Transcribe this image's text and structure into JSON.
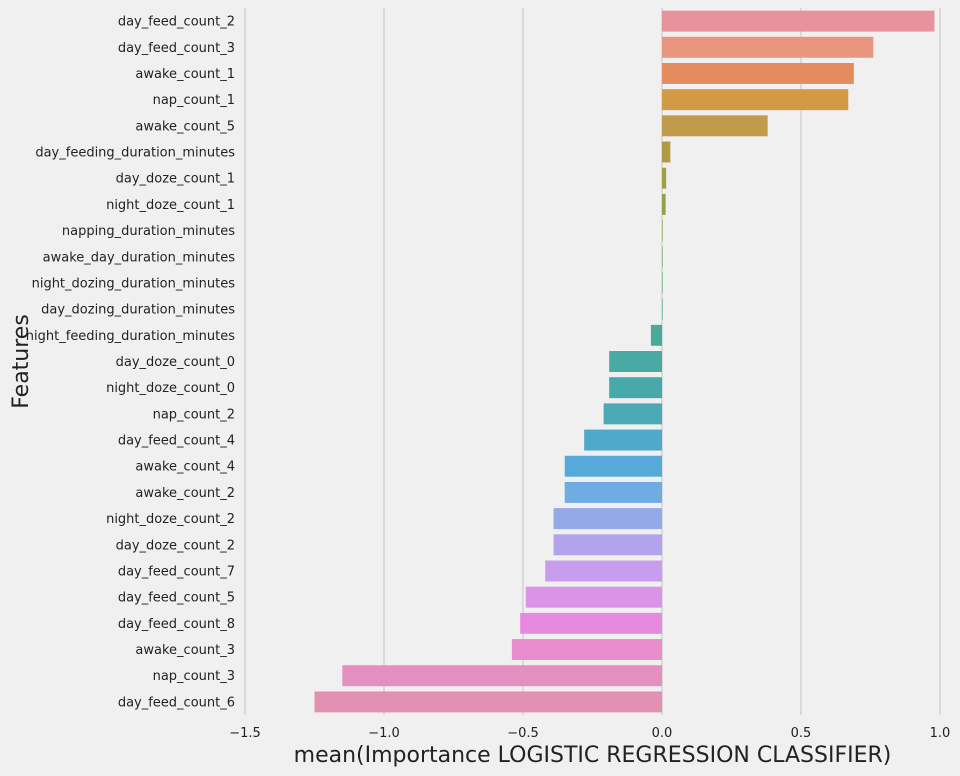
{
  "chart_data": {
    "type": "bar",
    "orientation": "horizontal",
    "xlabel": "mean(Importance LOGISTIC REGRESSION CLASSIFIER)",
    "ylabel": "Features",
    "xlim": [
      -1.5,
      1.0
    ],
    "xticks": [
      -1.5,
      -1.0,
      -0.5,
      0.0,
      0.5,
      1.0
    ],
    "xtick_labels": [
      "−1.5",
      "−1.0",
      "−0.5",
      "0.0",
      "0.5",
      "1.0"
    ],
    "grid": "vertical",
    "categories": [
      "day_feed_count_2",
      "day_feed_count_3",
      "awake_count_1",
      "nap_count_1",
      "awake_count_5",
      "day_feeding_duration_minutes",
      "day_doze_count_1",
      "night_doze_count_1",
      "napping_duration_minutes",
      "awake_day_duration_minutes",
      "night_dozing_duration_minutes",
      "day_dozing_duration_minutes",
      "night_feeding_duration_minutes",
      "day_doze_count_0",
      "night_doze_count_0",
      "nap_count_2",
      "day_feed_count_4",
      "awake_count_4",
      "awake_count_2",
      "night_doze_count_2",
      "day_doze_count_2",
      "day_feed_count_7",
      "day_feed_count_5",
      "day_feed_count_8",
      "awake_count_3",
      "nap_count_3",
      "day_feed_count_6"
    ],
    "values": [
      0.98,
      0.76,
      0.69,
      0.67,
      0.38,
      0.03,
      0.015,
      0.013,
      0.002,
      0.002,
      0.002,
      0.002,
      -0.04,
      -0.19,
      -0.19,
      -0.21,
      -0.28,
      -0.35,
      -0.35,
      -0.39,
      -0.39,
      -0.42,
      -0.49,
      -0.51,
      -0.54,
      -1.15,
      -1.25
    ],
    "colors": [
      "#e8929e",
      "#e9967e",
      "#e58c5e",
      "#d39a45",
      "#c19a4c",
      "#b19a45",
      "#a39f46",
      "#94a245",
      "#84a749",
      "#6fa95a",
      "#57ac72",
      "#4aac88",
      "#48ab98",
      "#48aaa3",
      "#48a9ab",
      "#4aaab6",
      "#4eaac8",
      "#56aad9",
      "#6eace2",
      "#94a9e8",
      "#b1a4ec",
      "#c89ded",
      "#da93e6",
      "#e68ae0",
      "#e88dcd",
      "#e38fc0",
      "#e391b2"
    ]
  }
}
